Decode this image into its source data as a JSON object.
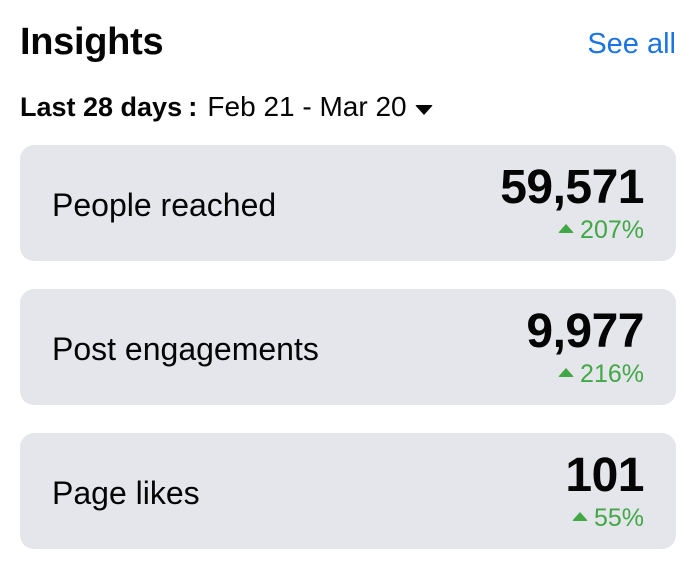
{
  "header": {
    "title": "Insights",
    "see_all_label": "See all"
  },
  "range": {
    "label": "Last 28 days",
    "separator": ":",
    "dates": "Feb 21 - Mar 20"
  },
  "cards": [
    {
      "label": "People reached",
      "value": "59,571",
      "change": "207%",
      "trend": "up"
    },
    {
      "label": "Post engagements",
      "value": "9,977",
      "change": "216%",
      "trend": "up"
    },
    {
      "label": "Page likes",
      "value": "101",
      "change": "55%",
      "trend": "up"
    }
  ],
  "colors": {
    "accent": "#1b74e4",
    "positive": "#42a846",
    "card_background": "#e4e6eb",
    "text": "#050505"
  },
  "icons": {
    "dropdown": "caret-down-icon",
    "trend": "triangle-up-icon"
  }
}
